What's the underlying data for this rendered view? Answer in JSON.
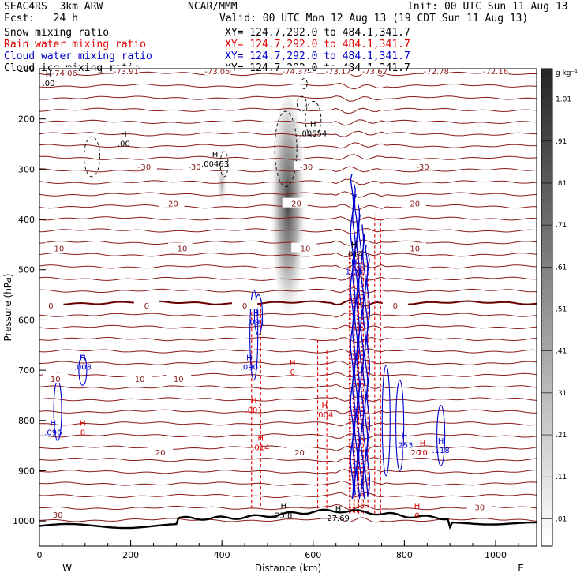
{
  "header": {
    "model": "SEAC4RS  3km ARW",
    "org": "NCAR/MMM",
    "init": "Init: 00 UTC Sun 11 Aug 13",
    "fcst": "Fcst:   24 h",
    "valid": "Valid: 00 UTC Mon 12 Aug 13 (19 CDT Sun 11 Aug 13)",
    "fields": [
      {
        "label": "Snow mixing ratio",
        "xy": "XY= 124.7,292.0 to 484.1,341.7",
        "color": "#000000"
      },
      {
        "label": "Rain water mixing ratio",
        "xy": "XY= 124.7,292.0 to 484.1,341.7",
        "color": "#e00000"
      },
      {
        "label": "Cloud water mixing ratio",
        "xy": "XY= 124.7,292.0 to 484.1,341.7",
        "color": "#0000cc"
      },
      {
        "label": "Cloud ice mixing ratio",
        "xy": "XY= 124.7,292.0 to 484.1,341.7",
        "color": "#000000"
      }
    ]
  },
  "chart_data": {
    "type": "heatmap",
    "xlabel": "Distance (km)",
    "ylabel": "Pressure (hPa)",
    "xlim": [
      0,
      1090
    ],
    "ylim": [
      1050,
      100
    ],
    "x_ticks": [
      0,
      200,
      400,
      600,
      800,
      1000
    ],
    "y_ticks": [
      200,
      300,
      400,
      500,
      600,
      700,
      800,
      900,
      1000
    ],
    "y_top_tick_label": "100",
    "end_labels": {
      "left": "W",
      "right": "E"
    },
    "colorbar": {
      "units": "g kg⁻¹",
      "labels": [
        ".01",
        ".11",
        ".21",
        ".31",
        ".41",
        ".51",
        ".61",
        ".71",
        ".81",
        ".91",
        "1.01"
      ]
    },
    "temperature_labels": [
      {
        "x": 55,
        "p": 108,
        "text": "-74.06"
      },
      {
        "x": 190,
        "p": 105,
        "text": "-73.91"
      },
      {
        "x": 390,
        "p": 105,
        "text": "-73.05"
      },
      {
        "x": 560,
        "p": 105,
        "text": "-74.37"
      },
      {
        "x": 655,
        "p": 105,
        "text": "-73.17"
      },
      {
        "x": 735,
        "p": 105,
        "text": "-73.62"
      },
      {
        "x": 870,
        "p": 105,
        "text": "-72.78"
      },
      {
        "x": 1000,
        "p": 105,
        "text": "-72.16"
      },
      {
        "x": 230,
        "p": 295,
        "text": "-30"
      },
      {
        "x": 340,
        "p": 295,
        "text": "-30"
      },
      {
        "x": 585,
        "p": 295,
        "text": "-30"
      },
      {
        "x": 840,
        "p": 295,
        "text": "-30"
      },
      {
        "x": 290,
        "p": 368,
        "text": "-20"
      },
      {
        "x": 560,
        "p": 368,
        "text": "-20"
      },
      {
        "x": 820,
        "p": 368,
        "text": "-20"
      },
      {
        "x": 40,
        "p": 457,
        "text": "-10"
      },
      {
        "x": 310,
        "p": 457,
        "text": "-10"
      },
      {
        "x": 580,
        "p": 457,
        "text": "-10"
      },
      {
        "x": 820,
        "p": 457,
        "text": "-10"
      },
      {
        "x": 25,
        "p": 571,
        "text": "0"
      },
      {
        "x": 235,
        "p": 571,
        "text": "0"
      },
      {
        "x": 450,
        "p": 571,
        "text": "0"
      },
      {
        "x": 780,
        "p": 571,
        "text": "0"
      },
      {
        "x": 35,
        "p": 717,
        "text": "10"
      },
      {
        "x": 220,
        "p": 717,
        "text": "10"
      },
      {
        "x": 305,
        "p": 717,
        "text": "10"
      },
      {
        "x": 265,
        "p": 863,
        "text": "20"
      },
      {
        "x": 570,
        "p": 863,
        "text": "20"
      },
      {
        "x": 825,
        "p": 863,
        "text": "20"
      },
      {
        "x": 40,
        "p": 987,
        "text": "30"
      },
      {
        "x": 965,
        "p": 972,
        "text": "30"
      }
    ],
    "high_markers": [
      {
        "x": 20,
        "p": 125,
        "color": "#000000",
        "label": ".00"
      },
      {
        "x": 185,
        "p": 245,
        "color": "#000000",
        "label": ".00"
      },
      {
        "x": 385,
        "p": 285,
        "color": "#000000",
        "label": ".00463"
      },
      {
        "x": 600,
        "p": 225,
        "color": "#000000",
        "label": ".00554"
      },
      {
        "x": 690,
        "p": 465,
        "color": "#000000",
        "label": ".014"
      },
      {
        "x": 95,
        "p": 690,
        "color": "#0000cc",
        "label": ".003"
      },
      {
        "x": 30,
        "p": 820,
        "color": "#0000cc",
        "label": ".096"
      },
      {
        "x": 460,
        "p": 690,
        "color": "#0000cc",
        "label": ".090"
      },
      {
        "x": 475,
        "p": 600,
        "color": "#0000cc",
        "label": ".091"
      },
      {
        "x": 690,
        "p": 500,
        "color": "#0000cc",
        "label": "1.06"
      },
      {
        "x": 800,
        "p": 845,
        "color": "#0000cc",
        "label": ".253"
      },
      {
        "x": 880,
        "p": 855,
        "color": "#0000cc",
        "label": ".118"
      },
      {
        "x": 95,
        "p": 820,
        "color": "#e00000",
        "label": "0"
      },
      {
        "x": 555,
        "p": 700,
        "color": "#e00000",
        "label": "0"
      },
      {
        "x": 470,
        "p": 775,
        "color": "#e00000",
        "label": ".001"
      },
      {
        "x": 625,
        "p": 785,
        "color": "#e00000",
        "label": ".004"
      },
      {
        "x": 485,
        "p": 850,
        "color": "#e00000",
        "label": ".014"
      },
      {
        "x": 840,
        "p": 860,
        "color": "#e00000",
        "label": "20"
      },
      {
        "x": 828,
        "p": 985,
        "color": "#e00000",
        "label": "0"
      },
      {
        "x": 535,
        "p": 985,
        "color": "#000000",
        "label": "25.8"
      },
      {
        "x": 655,
        "p": 990,
        "color": "#000000",
        "label": "27.69"
      }
    ]
  }
}
